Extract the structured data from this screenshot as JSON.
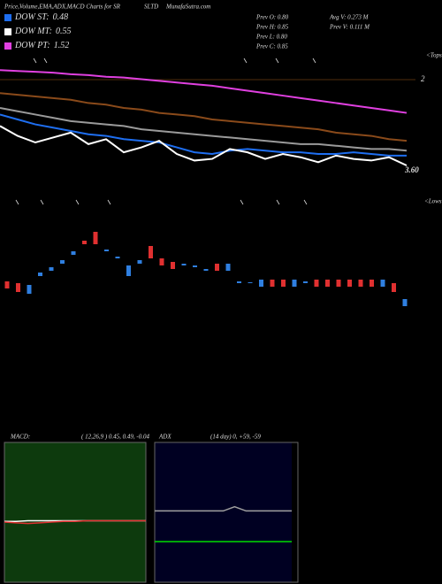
{
  "header": {
    "title": "Price,Volume,EMA,ADX,MACD Charts for SR",
    "symbol": "SLTD",
    "site": "MunafaSutra.com",
    "stats": [
      "Prev  O: 0.80",
      "Prev  H: 0.85",
      "Prev  L: 0.80",
      "Prev  C: 0.85"
    ],
    "volume_stats": [
      "Avg V: 0.273 M",
      "Prev  V: 0.111 M"
    ]
  },
  "chart_data": [
    {
      "type": "line",
      "ylim": [
        0.35,
        1.05
      ],
      "labels": {
        "tops": "<Tops",
        "lows": "<Lows",
        "upper": "2",
        "lower": "3.60"
      },
      "series": [
        {
          "name": "DOW PT:",
          "legend_value": "1.52",
          "color": "#e040e0",
          "values": [
            1.0,
            0.995,
            0.99,
            0.985,
            0.975,
            0.97,
            0.96,
            0.955,
            0.945,
            0.935,
            0.925,
            0.915,
            0.905,
            0.89,
            0.875,
            0.86,
            0.845,
            0.83,
            0.815,
            0.8,
            0.785,
            0.77,
            0.755,
            0.74
          ]
        },
        {
          "color": "#8a4a1a",
          "values": [
            0.86,
            0.85,
            0.84,
            0.83,
            0.82,
            0.8,
            0.79,
            0.77,
            0.76,
            0.74,
            0.73,
            0.72,
            0.7,
            0.69,
            0.68,
            0.67,
            0.66,
            0.65,
            0.64,
            0.62,
            0.61,
            0.6,
            0.58,
            0.57
          ]
        },
        {
          "color": "#9a9a9a",
          "values": [
            0.77,
            0.75,
            0.73,
            0.71,
            0.69,
            0.68,
            0.67,
            0.66,
            0.64,
            0.63,
            0.62,
            0.61,
            0.6,
            0.59,
            0.58,
            0.57,
            0.56,
            0.55,
            0.55,
            0.54,
            0.53,
            0.52,
            0.52,
            0.51
          ]
        },
        {
          "name": "DOW ST:",
          "legend_value": "0.48",
          "color": "#1e6ef0",
          "values": [
            0.73,
            0.7,
            0.67,
            0.65,
            0.63,
            0.61,
            0.6,
            0.58,
            0.57,
            0.56,
            0.53,
            0.5,
            0.49,
            0.51,
            0.52,
            0.51,
            0.5,
            0.5,
            0.49,
            0.49,
            0.5,
            0.49,
            0.48,
            0.48
          ]
        },
        {
          "name": "DOW MT:",
          "legend_value": "0.55",
          "color": "#ffffff",
          "values": [
            0.66,
            0.6,
            0.56,
            0.59,
            0.62,
            0.55,
            0.58,
            0.5,
            0.53,
            0.57,
            0.49,
            0.45,
            0.46,
            0.52,
            0.5,
            0.46,
            0.49,
            0.47,
            0.44,
            0.48,
            0.46,
            0.45,
            0.47,
            0.42
          ]
        }
      ]
    },
    {
      "type": "candlestick",
      "ylim": [
        0,
        1
      ],
      "up_color": "#2f7fe0",
      "down_color": "#e03030",
      "open": [
        0.32,
        0.3,
        0.18,
        0.38,
        0.44,
        0.52,
        0.62,
        0.78,
        0.88,
        0.66,
        0.58,
        0.38,
        0.52,
        0.72,
        0.58,
        0.54,
        0.5,
        0.48,
        0.44,
        0.52,
        0.44,
        0.3,
        0.3,
        0.26,
        0.34,
        0.34,
        0.26,
        0.3,
        0.34,
        0.34,
        0.34,
        0.34,
        0.34,
        0.34,
        0.26,
        0.3,
        0.04
      ],
      "close": [
        0.24,
        0.2,
        0.28,
        0.42,
        0.48,
        0.56,
        0.66,
        0.74,
        0.74,
        0.68,
        0.6,
        0.5,
        0.56,
        0.58,
        0.5,
        0.46,
        0.52,
        0.5,
        0.46,
        0.44,
        0.52,
        0.32,
        0.31,
        0.34,
        0.26,
        0.26,
        0.34,
        0.32,
        0.26,
        0.26,
        0.26,
        0.26,
        0.26,
        0.26,
        0.34,
        0.2,
        0.12
      ]
    },
    {
      "type": "line",
      "title": "MACD:",
      "subtitle": "( 12,26,9 ) 0.45, 0.49, -0.04",
      "ylim": [
        -1,
        1
      ],
      "background": "#0d3a0d",
      "series": [
        {
          "color": "#ffffff",
          "values": [
            -0.13,
            -0.13,
            -0.12,
            -0.12,
            -0.12,
            -0.12,
            -0.12,
            -0.12,
            -0.12,
            -0.12,
            -0.12,
            -0.12,
            -0.12
          ]
        },
        {
          "color": "#e03030",
          "values": [
            -0.14,
            -0.15,
            -0.16,
            -0.15,
            -0.14,
            -0.13,
            -0.13,
            -0.12,
            -0.12,
            -0.12,
            -0.12,
            -0.12,
            -0.12
          ]
        }
      ]
    },
    {
      "type": "line",
      "title": "ADX",
      "subtitle": "(14 day) 0, +59, -59",
      "ylim": [
        0,
        100
      ],
      "background": "#000022",
      "series": [
        {
          "color": "#a0a0a0",
          "values": [
            51,
            51,
            51,
            51,
            51,
            51,
            51,
            54,
            51,
            51,
            51,
            51,
            51
          ]
        },
        {
          "color": "#00dd00",
          "values": [
            29,
            29,
            29,
            29,
            29,
            29,
            29,
            29,
            29,
            29,
            29,
            29,
            29
          ]
        }
      ]
    }
  ]
}
